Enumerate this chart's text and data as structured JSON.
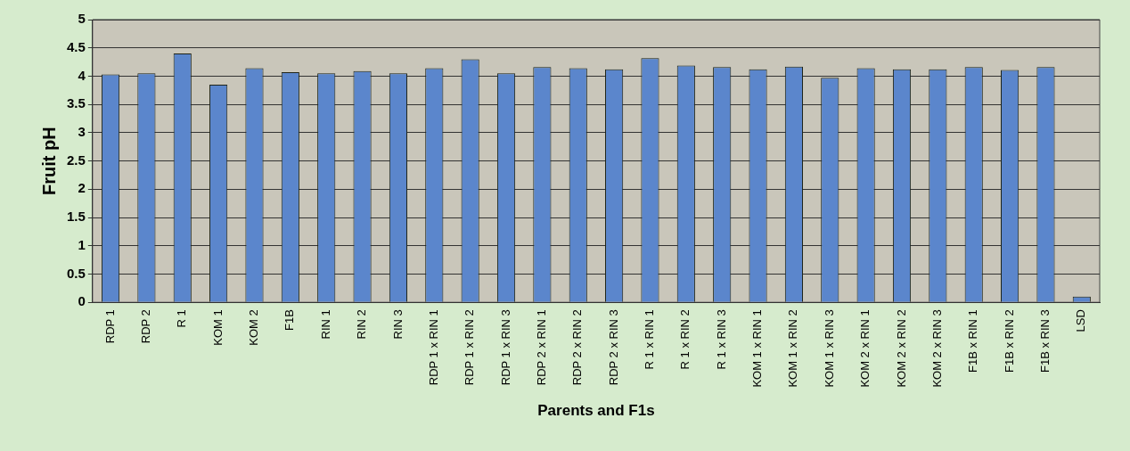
{
  "chart_data": {
    "type": "bar",
    "xlabel": "Parents and F1s",
    "ylabel": "Fruit pH",
    "categories": [
      "RDP 1",
      "RDP 2",
      "R 1",
      "KOM 1",
      "KOM 2",
      "F1B",
      "RIN 1",
      "RIN 2",
      "RIN 3",
      "RDP 1 x RIN 1",
      "RDP 1 x RIN 2",
      "RDP 1 x RIN 3",
      "RDP 2 x RIN 1",
      "RDP 2 x RIN 2",
      "RDP 2 x RIN 3",
      "R 1 x RIN 1",
      "R 1 x RIN 2",
      "R 1 x RIN 3",
      "KOM 1 x RIN 1",
      "KOM 1 x RIN 2",
      "KOM 1 x RIN 3",
      "KOM 2 x RIN 1",
      "KOM 2 x RIN 2",
      "KOM 2 x RIN 3",
      "F1B x RIN 1",
      "F1B x RIN 2",
      "F1B x RIN 3",
      "LSD"
    ],
    "values": [
      4.03,
      4.05,
      4.4,
      3.85,
      4.14,
      4.07,
      4.05,
      4.09,
      4.05,
      4.14,
      4.3,
      4.05,
      4.16,
      4.14,
      4.12,
      4.32,
      4.19,
      4.16,
      4.12,
      4.17,
      3.97,
      4.14,
      4.12,
      4.12,
      4.16,
      4.11,
      4.16,
      0.1
    ],
    "color": "#5b86cc",
    "ylim": [
      0,
      5
    ],
    "yticks": [
      0,
      0.5,
      1,
      1.5,
      2,
      2.5,
      3,
      3.5,
      4,
      4.5,
      5
    ],
    "grid": "y",
    "legend": false
  }
}
